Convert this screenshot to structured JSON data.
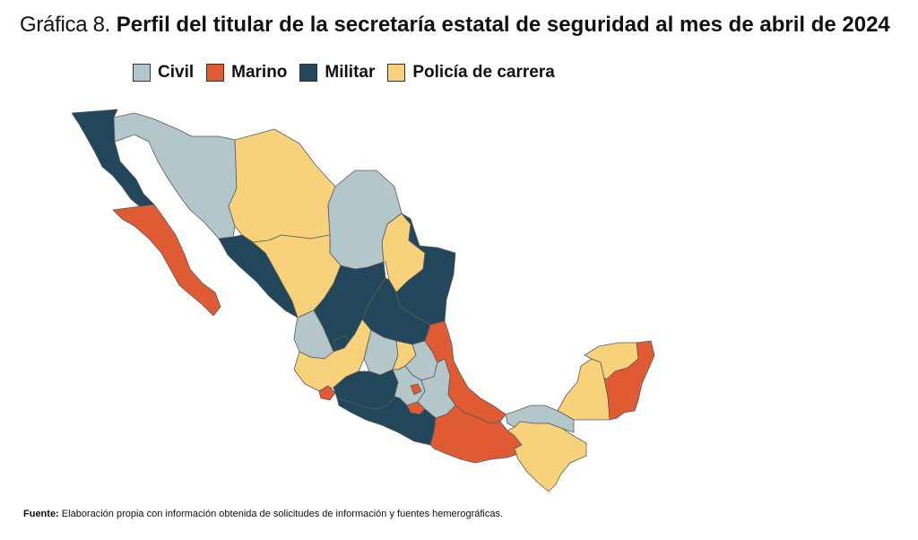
{
  "title": {
    "lead": "Gráfica 8.",
    "main": "Perfil del titular de la secretaría estatal de seguridad al mes de abril de 2024"
  },
  "legend": [
    {
      "key": "civil",
      "label": "Civil",
      "color": "#b3c6c9"
    },
    {
      "key": "marino",
      "label": "Marino",
      "color": "#e05a33"
    },
    {
      "key": "militar",
      "label": "Militar",
      "color": "#22475a"
    },
    {
      "key": "policia",
      "label": "Policía de carrera",
      "color": "#f7d27a"
    }
  ],
  "regions": [
    {
      "id": "baja-california",
      "category": "militar"
    },
    {
      "id": "baja-california-sur",
      "category": "marino"
    },
    {
      "id": "sonora",
      "category": "civil"
    },
    {
      "id": "chihuahua",
      "category": "policia"
    },
    {
      "id": "coahuila",
      "category": "civil"
    },
    {
      "id": "nuevo-leon",
      "category": "policia"
    },
    {
      "id": "tamaulipas",
      "category": "militar"
    },
    {
      "id": "sinaloa",
      "category": "militar"
    },
    {
      "id": "durango",
      "category": "policia"
    },
    {
      "id": "zacatecas",
      "category": "militar"
    },
    {
      "id": "san-luis-potosi",
      "category": "militar"
    },
    {
      "id": "nayarit",
      "category": "civil"
    },
    {
      "id": "aguascalientes",
      "category": "militar"
    },
    {
      "id": "jalisco",
      "category": "policia"
    },
    {
      "id": "colima",
      "category": "marino"
    },
    {
      "id": "guanajuato",
      "category": "civil"
    },
    {
      "id": "queretaro",
      "category": "policia"
    },
    {
      "id": "hidalgo",
      "category": "civil"
    },
    {
      "id": "michoacan",
      "category": "militar"
    },
    {
      "id": "estado-de-mexico",
      "category": "civil"
    },
    {
      "id": "ciudad-de-mexico",
      "category": "marino"
    },
    {
      "id": "morelos",
      "category": "marino"
    },
    {
      "id": "tlaxcala",
      "category": "civil"
    },
    {
      "id": "puebla",
      "category": "civil"
    },
    {
      "id": "veracruz",
      "category": "marino"
    },
    {
      "id": "guerrero",
      "category": "militar"
    },
    {
      "id": "oaxaca",
      "category": "marino"
    },
    {
      "id": "tabasco",
      "category": "civil"
    },
    {
      "id": "chiapas",
      "category": "policia"
    },
    {
      "id": "campeche",
      "category": "policia"
    },
    {
      "id": "yucatan",
      "category": "policia"
    },
    {
      "id": "quintana-roo",
      "category": "marino"
    }
  ],
  "source": {
    "label": "Fuente:",
    "text": "Elaboración propia con información obtenida de solicitudes de información y fuentes hemerográficas."
  }
}
